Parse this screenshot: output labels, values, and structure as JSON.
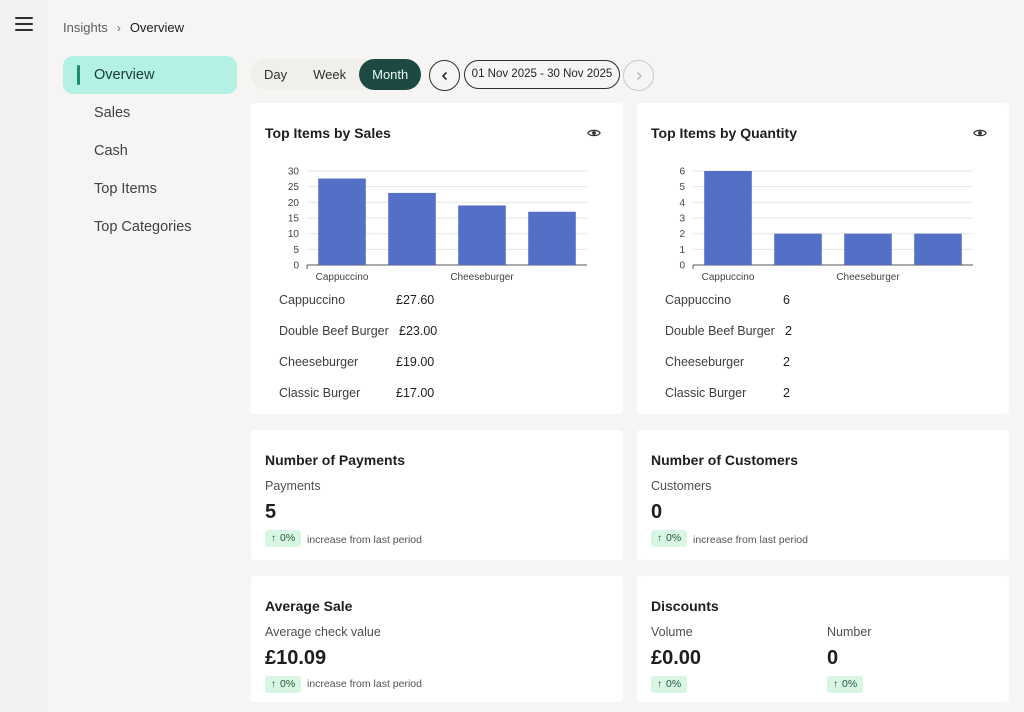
{
  "breadcrumb": {
    "parent": "Insights",
    "separator": "›",
    "current": "Overview"
  },
  "sidebar": {
    "items": [
      {
        "label": "Overview",
        "active": true
      },
      {
        "label": "Sales"
      },
      {
        "label": "Cash"
      },
      {
        "label": "Top Items"
      },
      {
        "label": "Top Categories"
      }
    ]
  },
  "period": {
    "options": [
      "Day",
      "Week",
      "Month"
    ],
    "selected": "Month",
    "range": "01 Nov 2025 - 30 Nov 2025",
    "prev_icon": "chevron-left-icon",
    "next_icon": "chevron-right-icon"
  },
  "colors": {
    "accent": "#1c4a43",
    "active_nav": "#b3f1e5",
    "bar": "#5470c6",
    "badge_bg": "#d9f6e4"
  },
  "cards": {
    "top_sales": {
      "title": "Top Items by Sales",
      "rows": [
        {
          "name": "Cappuccino",
          "value": "£27.60"
        },
        {
          "name": "Double Beef Burger",
          "value": "£23.00"
        },
        {
          "name": "Cheeseburger",
          "value": "£19.00"
        },
        {
          "name": "Classic Burger",
          "value": "£17.00"
        }
      ]
    },
    "top_quantity": {
      "title": "Top Items by Quantity",
      "rows": [
        {
          "name": "Cappuccino",
          "value": "6"
        },
        {
          "name": "Double Beef Burger",
          "value": "2"
        },
        {
          "name": "Cheeseburger",
          "value": "2"
        },
        {
          "name": "Classic Burger",
          "value": "2"
        }
      ]
    },
    "payments": {
      "title": "Number of Payments",
      "label": "Payments",
      "value": "5",
      "change": "0%",
      "note": "increase from last period"
    },
    "customers": {
      "title": "Number of Customers",
      "label": "Customers",
      "value": "0",
      "change": "0%",
      "note": "increase from last period"
    },
    "avg_sale": {
      "title": "Average Sale",
      "label": "Average check value",
      "value": "£10.09",
      "change": "0%",
      "note": "increase from last period"
    },
    "discounts": {
      "title": "Discounts",
      "volume": {
        "label": "Volume",
        "value": "£0.00",
        "change": "0%"
      },
      "number": {
        "label": "Number",
        "value": "0",
        "change": "0%"
      }
    }
  },
  "chart_data": [
    {
      "type": "bar",
      "categories": [
        "Cappuccino",
        "Double Beef Burger",
        "Cheeseburger",
        "Classic Burger"
      ],
      "visible_xticks": [
        "Cappuccino",
        "Cheeseburger"
      ],
      "values": [
        27.6,
        23,
        19,
        17
      ],
      "yticks": [
        0,
        5,
        10,
        15,
        20,
        25,
        30
      ],
      "ylim": [
        0,
        30
      ],
      "grid": true
    },
    {
      "type": "bar",
      "categories": [
        "Cappuccino",
        "Double Beef Burger",
        "Cheeseburger",
        "Classic Burger"
      ],
      "visible_xticks": [
        "Cappuccino",
        "Cheeseburger"
      ],
      "values": [
        6,
        2,
        2,
        2
      ],
      "yticks": [
        0,
        1,
        2,
        3,
        4,
        5,
        6
      ],
      "ylim": [
        0,
        6
      ],
      "grid": true
    }
  ]
}
